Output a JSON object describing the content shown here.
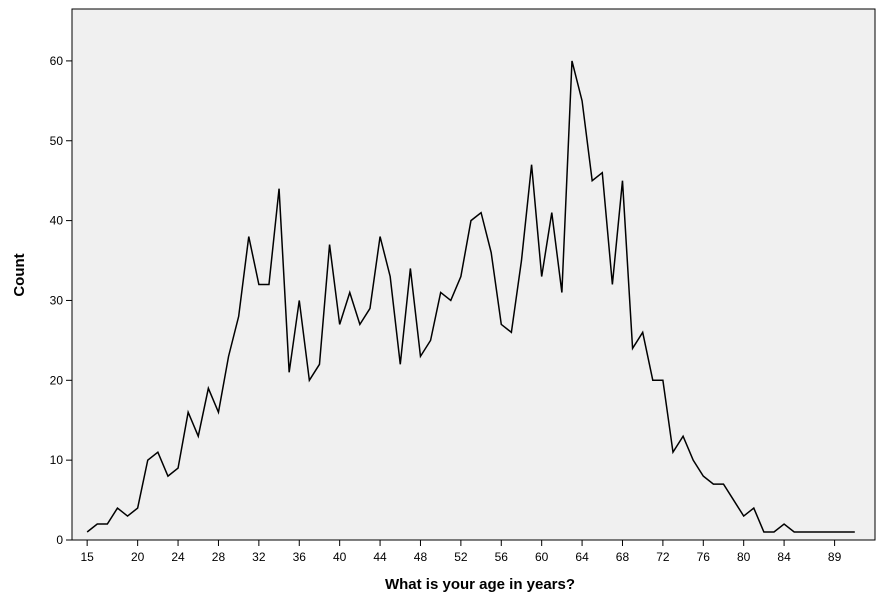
{
  "chart_data": {
    "type": "line",
    "title": "",
    "xlabel": "What is your age in years?",
    "ylabel": "Count",
    "xlim": [
      13.5,
      93
    ],
    "ylim": [
      0,
      66.5
    ],
    "grid": false,
    "legend": "none",
    "line_color": "#000000",
    "plot_background": "#f0f0f0",
    "x_ticks": [
      15,
      20,
      24,
      28,
      32,
      36,
      40,
      44,
      48,
      52,
      56,
      60,
      64,
      68,
      72,
      76,
      80,
      84,
      89
    ],
    "y_ticks": [
      0,
      10,
      20,
      30,
      40,
      50,
      60
    ],
    "x": [
      15,
      16,
      17,
      18,
      19,
      20,
      21,
      22,
      23,
      24,
      25,
      26,
      27,
      28,
      29,
      30,
      31,
      32,
      33,
      34,
      35,
      36,
      37,
      38,
      39,
      40,
      41,
      42,
      43,
      44,
      45,
      46,
      47,
      48,
      49,
      50,
      51,
      52,
      53,
      54,
      55,
      56,
      57,
      58,
      59,
      60,
      61,
      62,
      63,
      64,
      65,
      66,
      67,
      68,
      69,
      70,
      71,
      72,
      73,
      74,
      75,
      76,
      77,
      78,
      79,
      80,
      81,
      82,
      83,
      84,
      85,
      86,
      87,
      88,
      89,
      90,
      91
    ],
    "y": [
      1,
      2,
      2,
      4,
      3,
      4,
      10,
      11,
      8,
      9,
      16,
      13,
      19,
      16,
      23,
      28,
      38,
      32,
      32,
      44,
      21,
      30,
      20,
      22,
      37,
      27,
      31,
      27,
      29,
      38,
      33,
      22,
      34,
      23,
      25,
      31,
      30,
      33,
      40,
      41,
      36,
      27,
      26,
      35,
      47,
      33,
      41,
      31,
      60,
      55,
      45,
      46,
      32,
      45,
      24,
      26,
      20,
      20,
      11,
      13,
      10,
      8,
      7,
      7,
      5,
      3,
      4,
      1,
      1,
      2,
      1,
      1,
      1,
      1,
      1,
      1,
      1
    ]
  }
}
